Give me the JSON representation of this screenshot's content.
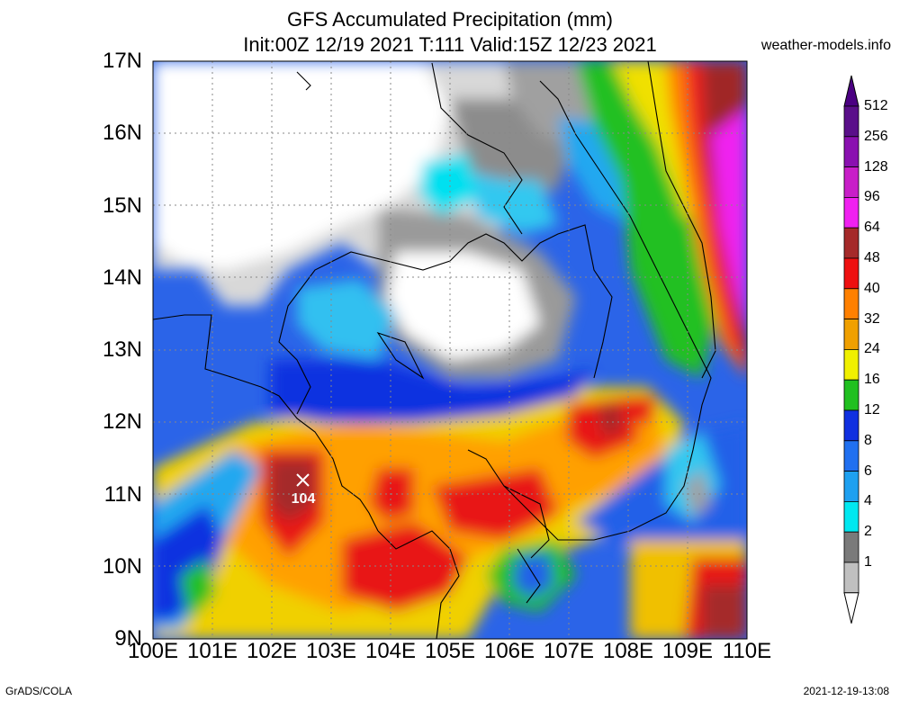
{
  "title_line1": "GFS Accumulated Precipitation (mm)",
  "title_line2": "Init:00Z 12/19 2021 T:111 Valid:15Z 12/23 2021",
  "site": "weather-models.info",
  "footer_left": "GrADS/COLA",
  "footer_right": "2021-12-19-13:08",
  "max_marker": {
    "label": "104",
    "lon": 102.55,
    "lat": 11.2
  },
  "lat_labels": [
    "17N",
    "16N",
    "15N",
    "14N",
    "13N",
    "12N",
    "11N",
    "10N",
    "9N"
  ],
  "lon_labels": [
    "100E",
    "101E",
    "102E",
    "103E",
    "104E",
    "105E",
    "106E",
    "107E",
    "108E",
    "109E",
    "110E"
  ],
  "colorbar": {
    "levels": [
      "512",
      "256",
      "128",
      "96",
      "64",
      "48",
      "40",
      "32",
      "24",
      "16",
      "12",
      "8",
      "6",
      "4",
      "2",
      "1"
    ],
    "colors": [
      "#5a0f8a",
      "#8a10b0",
      "#c81ec8",
      "#f020f0",
      "#a52a2a",
      "#ee1010",
      "#ff8000",
      "#f0a000",
      "#f0f000",
      "#20c020",
      "#1030e0",
      "#2070f0",
      "#1ea0f0",
      "#00e8f0",
      "#7a7a7a",
      "#c0c0c0"
    ],
    "top_color": "#4b0082",
    "bottom_color": "#ffffff"
  },
  "chart_data": {
    "type": "heatmap",
    "xlim": [
      100,
      110
    ],
    "ylim": [
      9,
      17
    ],
    "units": "mm"
  }
}
